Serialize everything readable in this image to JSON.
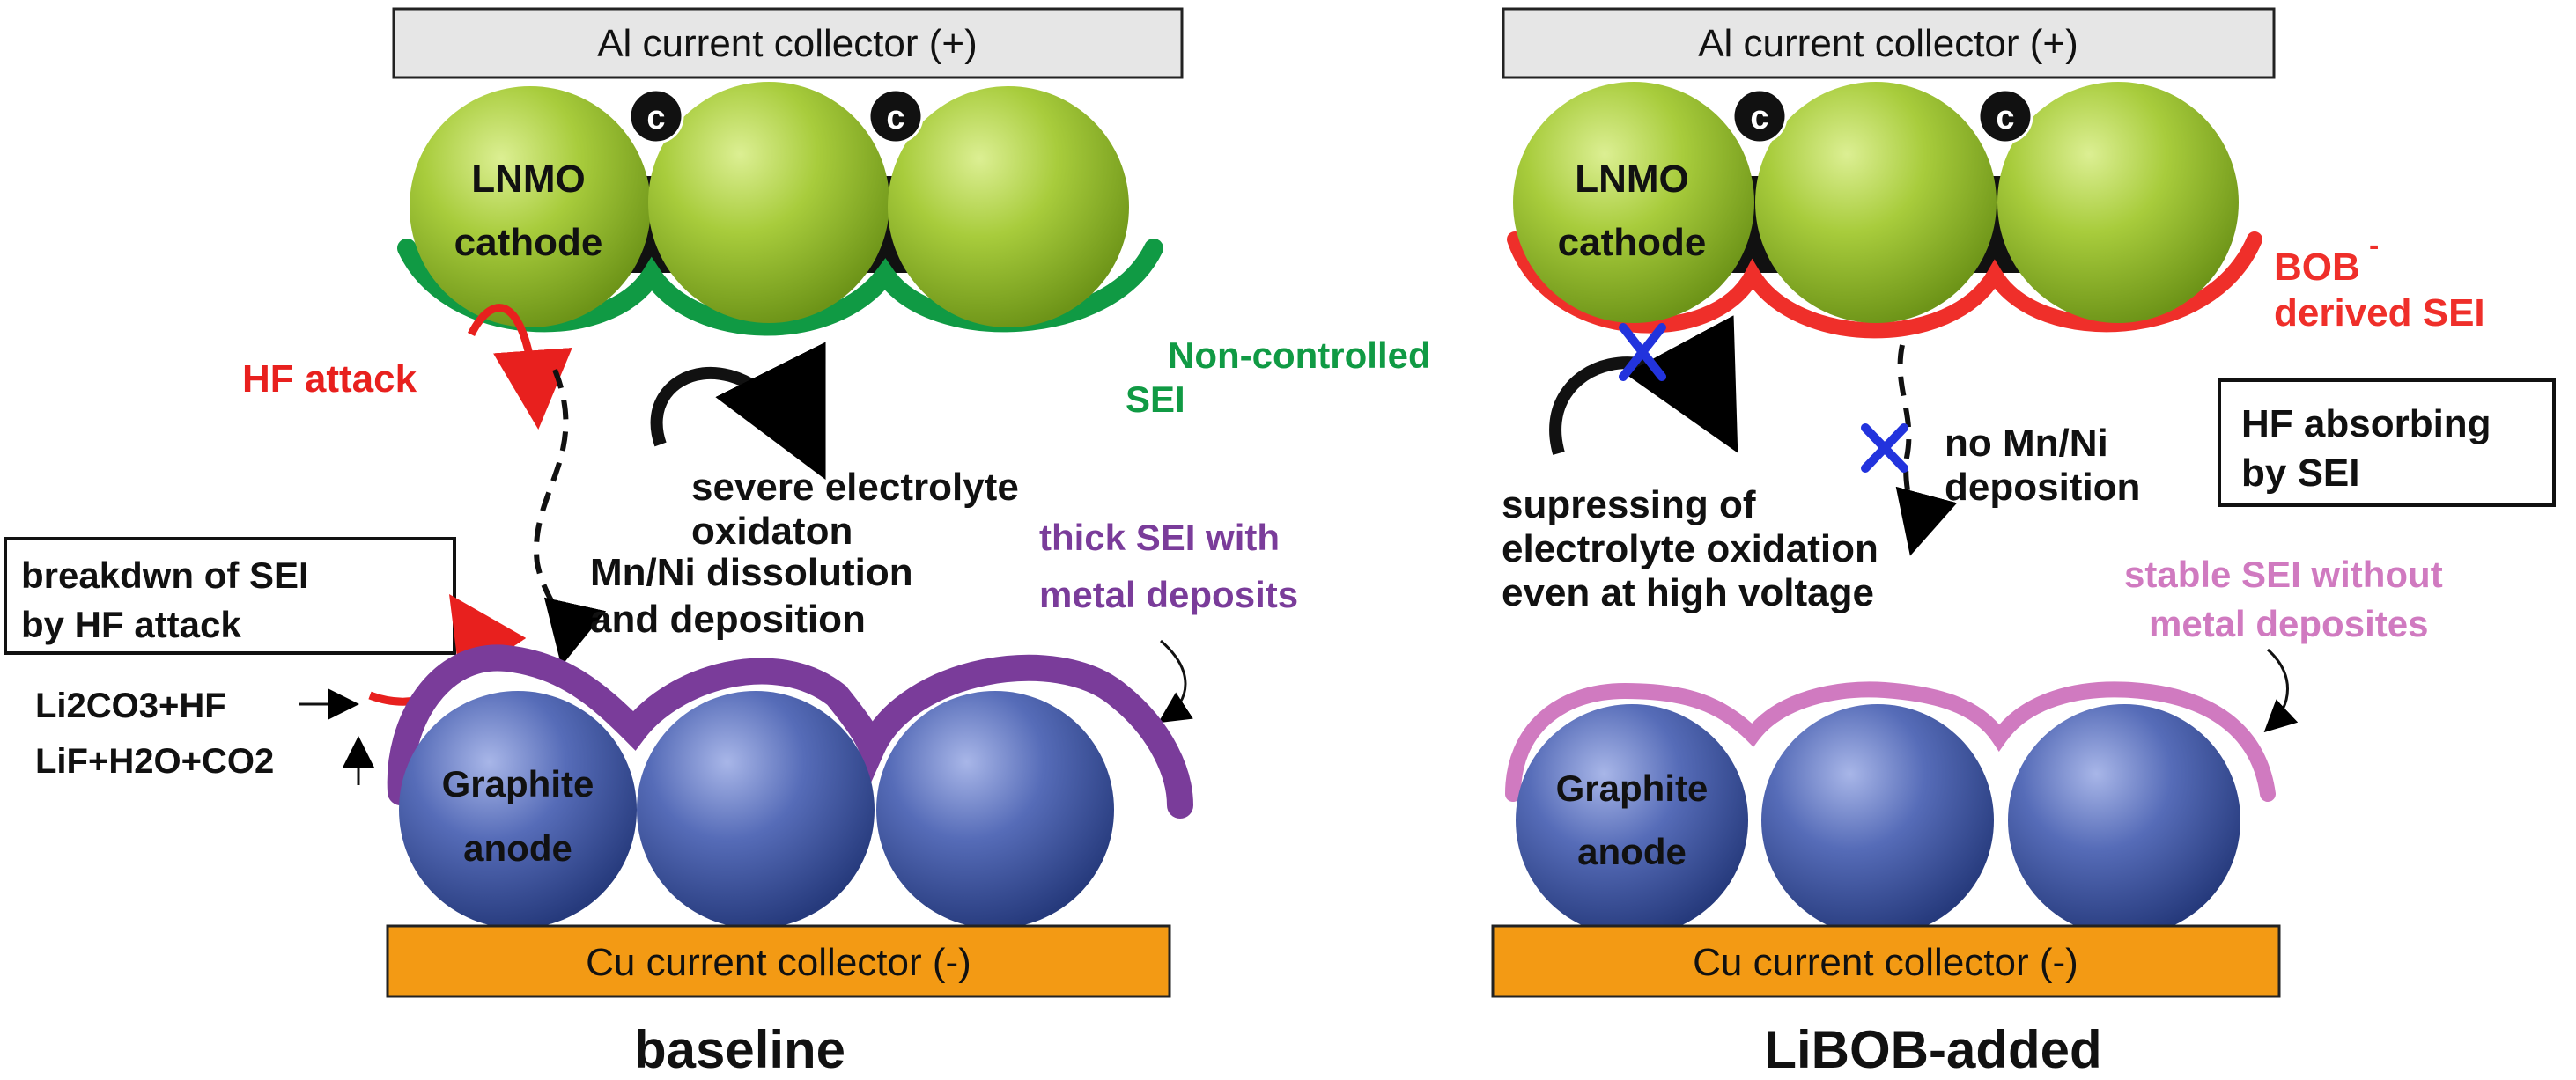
{
  "baseline": {
    "al_collector": "Al current collector (+)",
    "carbon_label": "c",
    "cathode_line1": "LNMO",
    "cathode_line2": "cathode",
    "hf_attack": "HF attack",
    "sei_line1": "Non-controlled",
    "sei_line2": "SEI",
    "oxidation_line1": "severe electrolyte",
    "oxidation_line2": "oxidaton",
    "dissolution_line1": "Mn/Ni dissolution",
    "dissolution_line2": "and deposition",
    "thick_sei_line1": "thick SEI with",
    "thick_sei_line2": "metal deposits",
    "breakdown_line1": "breakdwn of SEI",
    "breakdown_line2": "by HF attack",
    "reaction_line1": "Li2CO3+HF",
    "reaction_line2": "LiF+H2O+CO2",
    "anode_line1": "Graphite",
    "anode_line2": "anode",
    "cu_collector": "Cu current collector (-)",
    "caption": "baseline"
  },
  "libob": {
    "al_collector": "Al current collector (+)",
    "carbon_label": "c",
    "cathode_line1": "LNMO",
    "cathode_line2": "cathode",
    "bob_line1": "BOB",
    "bob_superscript": "-",
    "bob_line2": "derived SEI",
    "hf_box_line1": "HF absorbing",
    "hf_box_line2": "by SEI",
    "suppress_line1": "supressing of",
    "suppress_line2": "electrolyte oxidation",
    "suppress_line3": "even at high voltage",
    "no_dep_line1": "no Mn/Ni",
    "no_dep_line2": "deposition",
    "stable_line1": "stable SEI without",
    "stable_line2": "metal deposites",
    "anode_line1": "Graphite",
    "anode_line2": "anode",
    "cu_collector": "Cu current collector (-)",
    "caption": "LiBOB-added"
  },
  "colors": {
    "cathode_green": "#8fb82a",
    "anode_blue": "#3a4f94",
    "uncontrolled_sei": "#109a44",
    "bob_sei": "#ef2f2a",
    "thick_sei": "#7a3c9a",
    "stable_sei": "#d07ac0",
    "cu": "#f39a14",
    "al": "#e6e6e6",
    "hf_red": "#e8201e",
    "cross_blue": "#2233dd"
  }
}
